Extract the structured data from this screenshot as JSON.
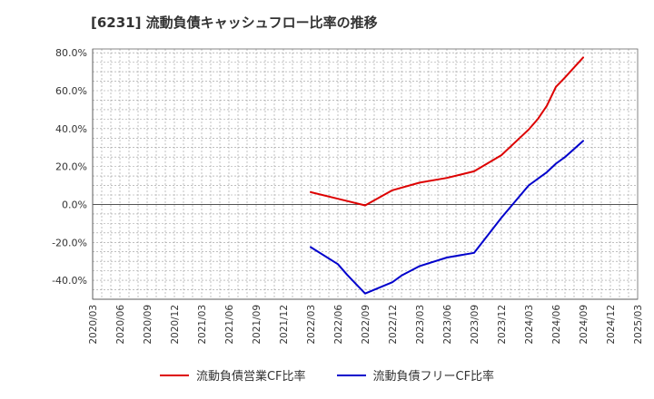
{
  "title": "[6231]  流動負債キャッシュフロー比率の推移",
  "chart_data": {
    "type": "line",
    "categories": [
      "2020/03",
      "2020/06",
      "2020/09",
      "2020/12",
      "2021/03",
      "2021/06",
      "2021/09",
      "2021/12",
      "2022/03",
      "2022/06",
      "2022/09",
      "2022/12",
      "2023/03",
      "2023/06",
      "2023/09",
      "2023/12",
      "2024/03",
      "2024/06",
      "2024/09",
      "2024/12",
      "2025/03"
    ],
    "x_months": [
      0,
      3,
      6,
      9,
      12,
      15,
      18,
      21,
      24,
      27,
      30,
      33,
      36,
      39,
      42,
      45,
      48,
      51,
      54,
      57,
      60
    ],
    "ylim": [
      -50,
      82
    ],
    "yticks": [
      -40,
      -20,
      0,
      20,
      40,
      60,
      80
    ],
    "ytick_labels": [
      "-40.0%",
      "-20.0%",
      "0.0%",
      "20.0%",
      "40.0%",
      "60.0%",
      "80.0%"
    ],
    "series": [
      {
        "name": "流動負債営業CF比率",
        "color": "#dd0000",
        "x": [
          24,
          27,
          30,
          33,
          36,
          39,
          42,
          45,
          47,
          48,
          49,
          50,
          51,
          52,
          54
        ],
        "values": [
          6.5,
          3,
          -0.5,
          7.5,
          11.5,
          14,
          17.5,
          26,
          35,
          39.5,
          45,
          52,
          62,
          67,
          77.5
        ]
      },
      {
        "name": "流動負債フリーCF比率",
        "color": "#0000cc",
        "x": [
          24,
          27,
          28,
          29,
          30,
          33,
          34,
          36,
          39,
          42,
          45,
          48,
          50,
          51,
          52,
          54
        ],
        "values": [
          -22.5,
          -31.5,
          -37,
          -42,
          -47,
          -41,
          -37.5,
          -32.5,
          -28,
          -25.5,
          -7,
          10,
          17,
          21.5,
          25,
          33.5
        ]
      }
    ]
  }
}
